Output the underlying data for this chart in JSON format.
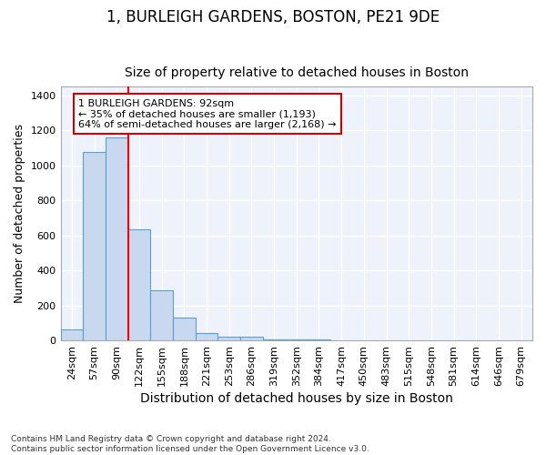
{
  "title": "1, BURLEIGH GARDENS, BOSTON, PE21 9DE",
  "subtitle": "Size of property relative to detached houses in Boston",
  "xlabel": "Distribution of detached houses by size in Boston",
  "ylabel": "Number of detached properties",
  "bin_labels": [
    "24sqm",
    "57sqm",
    "90sqm",
    "122sqm",
    "155sqm",
    "188sqm",
    "221sqm",
    "253sqm",
    "286sqm",
    "319sqm",
    "352sqm",
    "384sqm",
    "417sqm",
    "450sqm",
    "483sqm",
    "515sqm",
    "548sqm",
    "581sqm",
    "614sqm",
    "646sqm",
    "679sqm"
  ],
  "bar_heights": [
    65,
    1075,
    1160,
    635,
    285,
    130,
    45,
    20,
    20,
    5,
    5,
    5,
    0,
    0,
    0,
    0,
    0,
    0,
    0,
    0,
    0
  ],
  "bar_color": "#c8d8ee",
  "bar_edge_color": "#5a9fd4",
  "ylim": [
    0,
    1450
  ],
  "yticks": [
    0,
    200,
    400,
    600,
    800,
    1000,
    1200,
    1400
  ],
  "red_line_x": 2.5,
  "annotation_text": "1 BURLEIGH GARDENS: 92sqm\n← 35% of detached houses are smaller (1,193)\n64% of semi-detached houses are larger (2,168) →",
  "annotation_box_color": "#ffffff",
  "annotation_box_edge_color": "#cc0000",
  "footer_text": "Contains HM Land Registry data © Crown copyright and database right 2024.\nContains public sector information licensed under the Open Government Licence v3.0.",
  "title_fontsize": 12,
  "subtitle_fontsize": 10,
  "xlabel_fontsize": 10,
  "ylabel_fontsize": 9,
  "tick_fontsize": 8,
  "background_color": "#ffffff",
  "plot_bg_color": "#eef2fb",
  "grid_color": "#ffffff"
}
